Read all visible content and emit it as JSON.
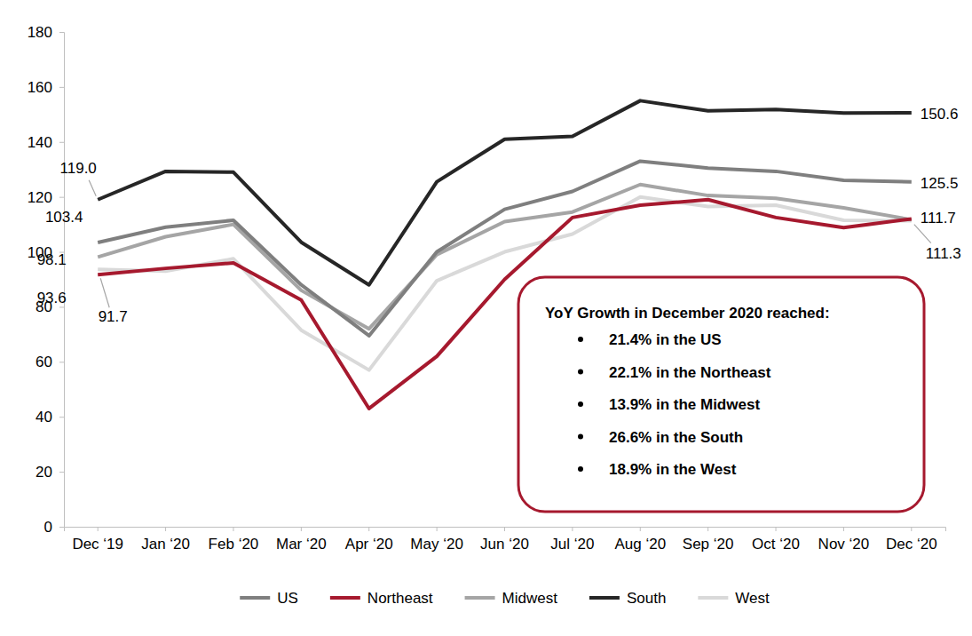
{
  "chart_data": {
    "type": "line",
    "categories": [
      "Dec ‘19",
      "Jan ‘20",
      "Feb ‘20",
      "Mar ‘20",
      "Apr ‘20",
      "May ‘20",
      "Jun ‘20",
      "Jul ‘20",
      "Aug ‘20",
      "Sep ‘20",
      "Oct ‘20",
      "Nov ‘20",
      "Dec ‘20"
    ],
    "series": [
      {
        "name": "US",
        "color": "#7f7f7f",
        "values": [
          103.4,
          109,
          111.5,
          88,
          69.5,
          100,
          115.5,
          122,
          133,
          130.5,
          129.3,
          126,
          125.5
        ],
        "value_labels": [
          "103.4",
          null,
          null,
          null,
          null,
          null,
          null,
          null,
          null,
          null,
          null,
          null,
          "125.5"
        ]
      },
      {
        "name": "Northeast",
        "color": "#a6192e",
        "values": [
          91.7,
          94,
          96,
          82.5,
          43,
          62,
          90,
          112.5,
          117,
          119,
          112.5,
          108.8,
          112
        ],
        "value_labels": [
          "91.7",
          null,
          null,
          null,
          null,
          null,
          null,
          null,
          null,
          null,
          null,
          null,
          null
        ]
      },
      {
        "name": "Midwest",
        "color": "#a5a5a5",
        "values": [
          98.1,
          105.5,
          110,
          86,
          72,
          99,
          111,
          114.5,
          124.5,
          120.5,
          119.5,
          116,
          111.7
        ],
        "value_labels": [
          "98.1",
          null,
          null,
          null,
          null,
          null,
          null,
          null,
          null,
          null,
          null,
          null,
          "111.7"
        ]
      },
      {
        "name": "South",
        "color": "#262626",
        "values": [
          119.0,
          129.3,
          129,
          103.5,
          88,
          125.5,
          141,
          142,
          155,
          151.3,
          151.8,
          150.5,
          150.6
        ],
        "value_labels": [
          "119.0",
          null,
          null,
          null,
          null,
          null,
          null,
          null,
          null,
          null,
          null,
          null,
          "150.6"
        ]
      },
      {
        "name": "West",
        "color": "#d9d9d9",
        "values": [
          93.6,
          93,
          97.5,
          71.5,
          57,
          89.5,
          100,
          106.5,
          120,
          116.5,
          117,
          111.5,
          111.3
        ],
        "value_labels": [
          "93.6",
          null,
          null,
          null,
          null,
          null,
          null,
          null,
          null,
          null,
          null,
          null,
          "111.3"
        ]
      }
    ],
    "ylim": [
      0,
      180
    ],
    "yticks": [
      0,
      20,
      40,
      60,
      80,
      100,
      120,
      140,
      160,
      180
    ],
    "grid": false,
    "legend": "bottom",
    "data_labels": true,
    "annotation": {
      "title": "YoY Growth in December 2020 reached:",
      "items": [
        "21.4% in the US",
        "22.1% in the Northeast",
        "13.9% in the Midwest",
        "26.6% in the South",
        "18.9% in the West"
      ]
    }
  }
}
